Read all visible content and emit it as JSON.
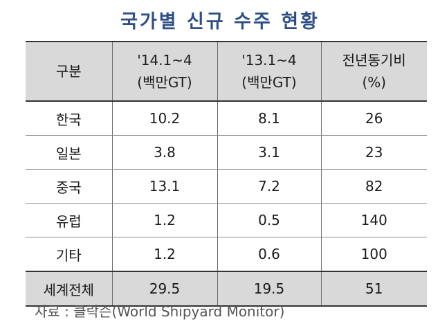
{
  "title": "국가별 신규 수주 현황",
  "table": {
    "header": {
      "col1": "구분",
      "col2_line1": "'14.1~4",
      "col2_line2": "(백만GT)",
      "col3_line1": "'13.1~4",
      "col3_line2": "(백만GT)",
      "col4_line1": "전년동기비",
      "col4_line2": "(%)"
    },
    "rows": [
      {
        "label": "한국",
        "v2014": "10.2",
        "v2013": "8.1",
        "yoy": "26"
      },
      {
        "label": "일본",
        "v2014": "3.8",
        "v2013": "3.1",
        "yoy": "23"
      },
      {
        "label": "중국",
        "v2014": "13.1",
        "v2013": "7.2",
        "yoy": "82"
      },
      {
        "label": "유럽",
        "v2014": "1.2",
        "v2013": "0.5",
        "yoy": "140"
      },
      {
        "label": "기타",
        "v2014": "1.2",
        "v2013": "0.6",
        "yoy": "100"
      }
    ],
    "total": {
      "label": "세계전체",
      "v2014": "29.5",
      "v2013": "19.5",
      "yoy": "51"
    }
  },
  "source": "자료 : 클락슨(World Shipyard Monitor)",
  "colors": {
    "title": "#2e4f86",
    "header_bg": "#d9d9d9",
    "source_text": "#555555"
  }
}
